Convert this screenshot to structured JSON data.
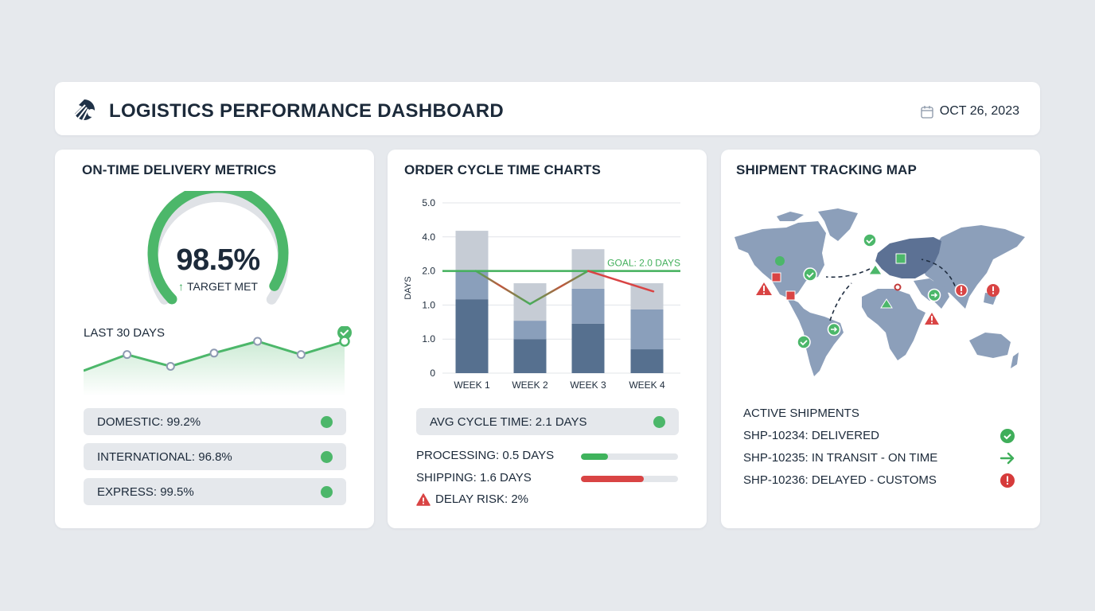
{
  "header": {
    "title": "LOGISTICS PERFORMANCE DASHBOARD",
    "logo_icon": "logistics-logo-icon",
    "date_icon": "calendar-icon",
    "date": "OCT 26, 2023"
  },
  "on_time": {
    "title": "ON-TIME DELIVERY METRICS",
    "gauge": {
      "value_label": "98.5%",
      "value": 98.5,
      "status": "TARGET MET",
      "status_icon": "arrow-up-icon"
    },
    "trend": {
      "label": "LAST 30 DAYS",
      "status_icon": "check-circle-icon",
      "points": [
        0.0,
        0.55,
        0.15,
        0.6,
        1.0,
        0.55,
        1.0
      ]
    },
    "metrics": [
      {
        "label": "DOMESTIC: 99.2%",
        "status": "good"
      },
      {
        "label": "INTERNATIONAL: 96.8%",
        "status": "good"
      },
      {
        "label": "EXPRESS: 99.5%",
        "status": "good"
      }
    ]
  },
  "cycle": {
    "title": "ORDER CYCLE TIME CHARTS",
    "chart_data": {
      "type": "bar",
      "stacked": true,
      "title": "ORDER CYCLE TIME CHARTS",
      "xlabel": "",
      "ylabel": "DAYS",
      "y_tick_labels": [
        "0",
        "1.0",
        "1.0",
        "2.0",
        "4.0",
        "5.0"
      ],
      "ylim_index": [
        0,
        5
      ],
      "categories": [
        "WEEK 1",
        "WEEK 2",
        "WEEK 3",
        "WEEK 4"
      ],
      "series": [
        {
          "name": "segment-1",
          "color": "#56708f",
          "values": [
            2.17,
            1.0,
            1.45,
            0.7
          ]
        },
        {
          "name": "segment-2",
          "color": "#8a9fbb",
          "values": [
            0.83,
            0.54,
            1.03,
            1.17
          ]
        },
        {
          "name": "segment-3",
          "color": "#c6ccd5",
          "values": [
            1.18,
            1.1,
            1.16,
            0.77
          ]
        }
      ],
      "line": {
        "name": "cycle-time-trend",
        "values": [
          3.0,
          2.03,
          3.0,
          2.4
        ]
      },
      "goal": {
        "label": "GOAL: 2.0 DAYS",
        "value_index": 3.0,
        "color": "#43b05c"
      },
      "grid": true,
      "note": "tick labels as printed; values expressed in tick-index units"
    },
    "avg": {
      "label": "AVG CYCLE TIME: 2.1 DAYS",
      "status": "good"
    },
    "progress": [
      {
        "label": "PROCESSING: 0.5 DAYS",
        "fraction": 0.28,
        "color": "#3fb35c"
      },
      {
        "label": "SHIPPING: 1.6 DAYS",
        "fraction": 0.65,
        "color": "#d94444"
      }
    ],
    "risk": {
      "label": "DELAY RISK: 2%",
      "icon": "warning-triangle-icon"
    }
  },
  "map": {
    "title": "SHIPMENT TRACKING MAP",
    "active_title": "ACTIVE SHIPMENTS",
    "shipments": [
      {
        "label": "SHP-10234: DELIVERED",
        "icon": "check-circle-icon",
        "color": "#3fae5a"
      },
      {
        "label": "SHP-10235: IN TRANSIT - ON TIME",
        "icon": "arrow-right-icon",
        "color": "#3fae5a"
      },
      {
        "label": "SHP-10236: DELAYED - CUSTOMS",
        "icon": "alert-circle-icon",
        "color": "#d63b3b"
      }
    ]
  },
  "colors": {
    "green": "#4cb76a",
    "red": "#d94444",
    "navy": "#1c2a3a",
    "map_land": "#8c9fba",
    "map_europe": "#5c7194"
  }
}
